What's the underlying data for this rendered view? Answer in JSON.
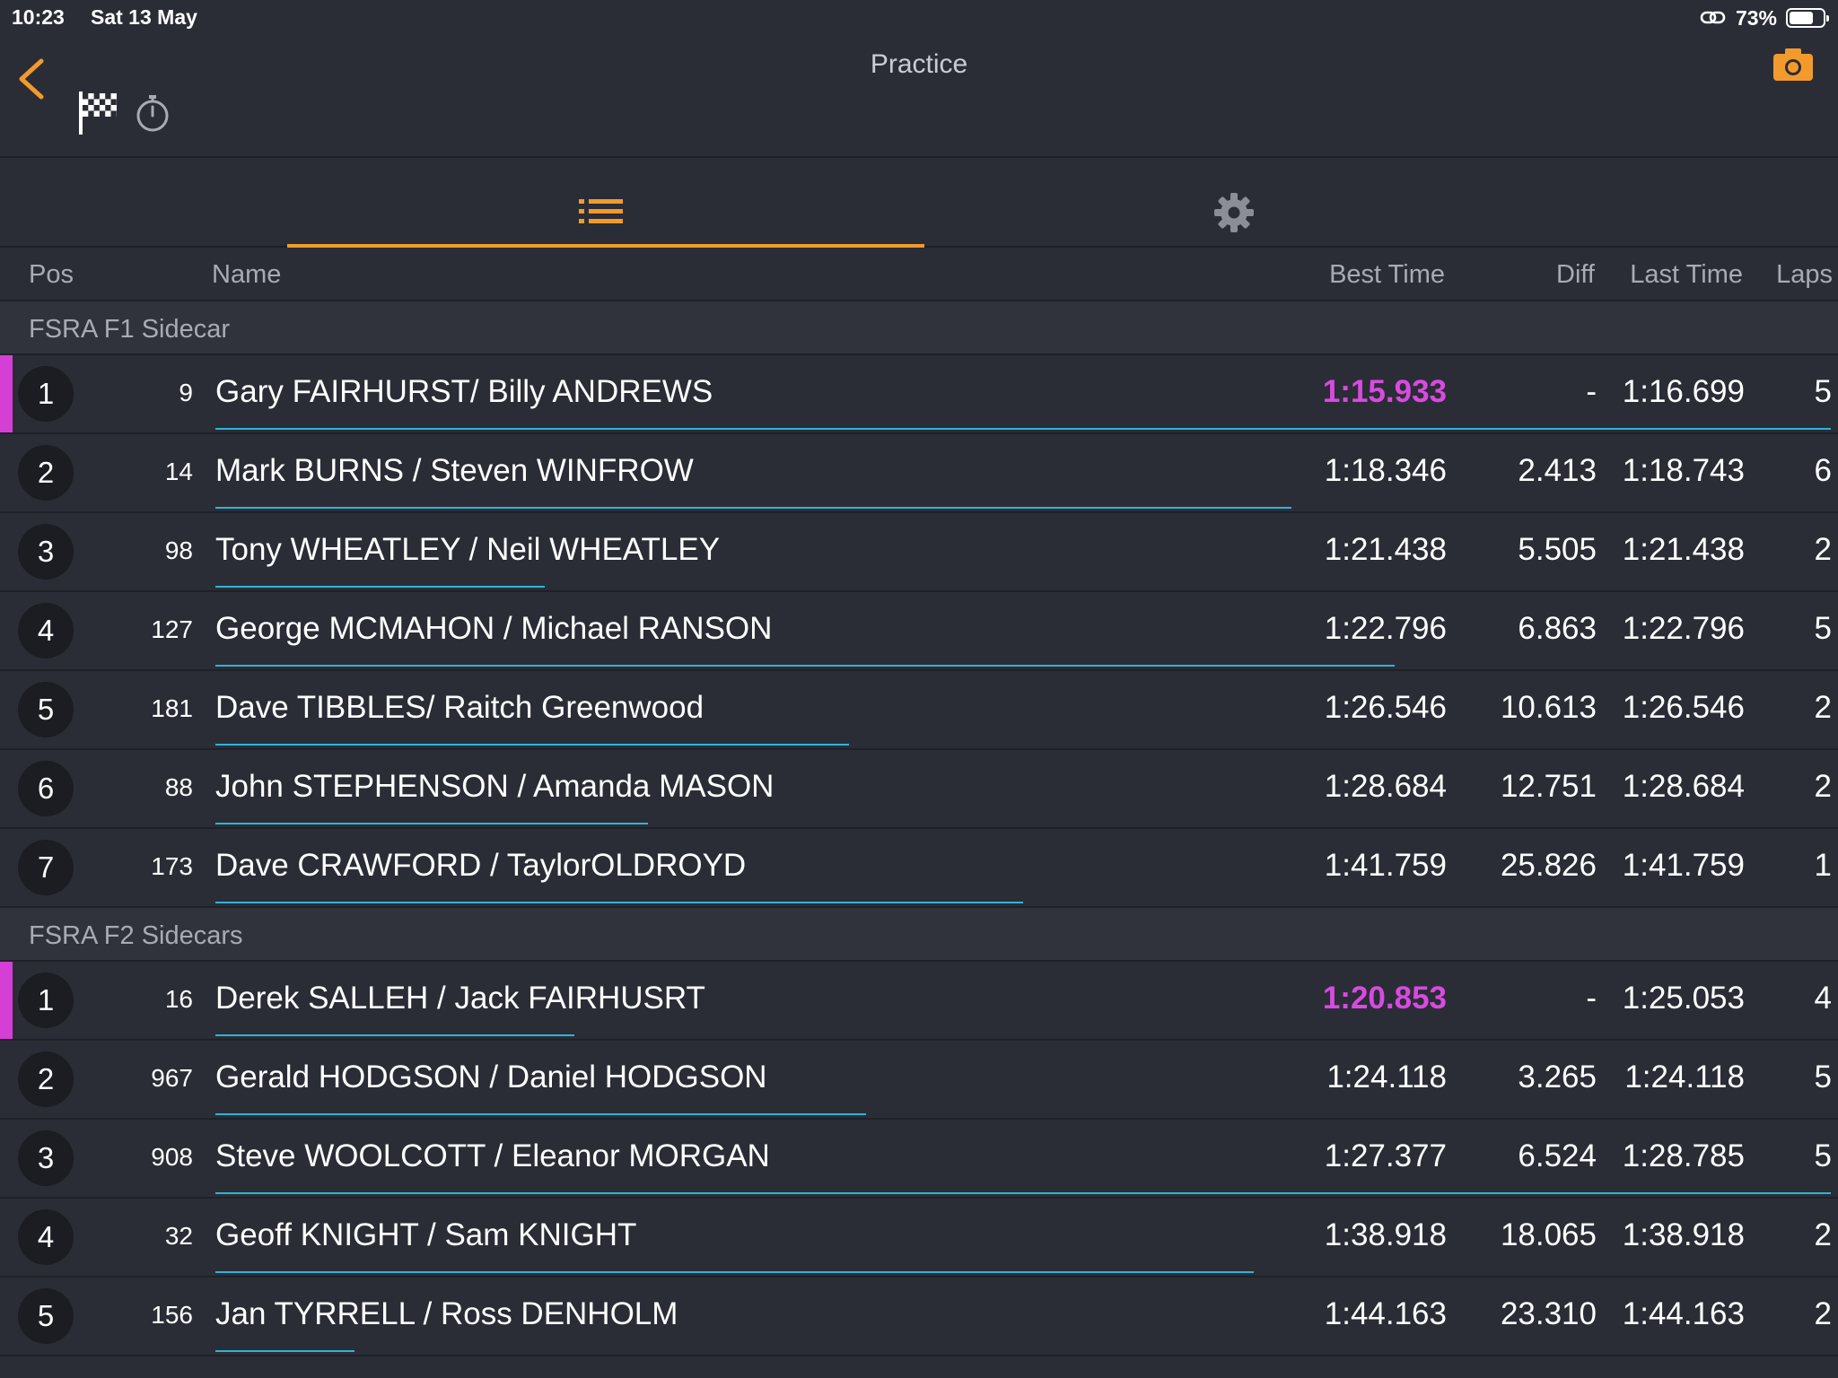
{
  "status_bar": {
    "time": "10:23",
    "date": "Sat 13 May",
    "battery": "73%",
    "battery_level": 0.73
  },
  "header": {
    "title": "Practice"
  },
  "colors": {
    "accent": "#f39a2c",
    "leader": "#d63fd6",
    "fastest": "#d84ae0",
    "progress": "#2fb4d6"
  },
  "columns": {
    "pos": "Pos",
    "name": "Name",
    "best": "Best Time",
    "diff": "Diff",
    "last": "Last Time",
    "laps": "Laps"
  },
  "groups": [
    {
      "name": "FSRA F1 Sidecar",
      "rows": [
        {
          "pos": "1",
          "num": "9",
          "name": "Gary FAIRHURST/ Billy ANDREWS",
          "best": "1:15.933",
          "diff": "-",
          "last": "1:16.699",
          "laps": "5",
          "leader": true,
          "progress": 1.0
        },
        {
          "pos": "2",
          "num": "14",
          "name": "Mark BURNS / Steven WINFROW",
          "best": "1:18.346",
          "diff": "2.413",
          "last": "1:18.743",
          "laps": "6",
          "leader": false,
          "progress": 0.666
        },
        {
          "pos": "3",
          "num": "98",
          "name": "Tony WHEATLEY / Neil WHEATLEY",
          "best": "1:21.438",
          "diff": "5.505",
          "last": "1:21.438",
          "laps": "2",
          "leader": false,
          "progress": 0.204
        },
        {
          "pos": "4",
          "num": "127",
          "name": "George MCMAHON / Michael RANSON",
          "best": "1:22.796",
          "diff": "6.863",
          "last": "1:22.796",
          "laps": "5",
          "leader": false,
          "progress": 0.73
        },
        {
          "pos": "5",
          "num": "181",
          "name": "Dave TIBBLES/ Raitch Greenwood",
          "best": "1:26.546",
          "diff": "10.613",
          "last": "1:26.546",
          "laps": "2",
          "leader": false,
          "progress": 0.392
        },
        {
          "pos": "6",
          "num": "88",
          "name": "John STEPHENSON / Amanda MASON",
          "best": "1:28.684",
          "diff": "12.751",
          "last": "1:28.684",
          "laps": "2",
          "leader": false,
          "progress": 0.268
        },
        {
          "pos": "7",
          "num": "173",
          "name": "Dave CRAWFORD / TaylorOLDROYD",
          "best": "1:41.759",
          "diff": "25.826",
          "last": "1:41.759",
          "laps": "1",
          "leader": false,
          "progress": 0.5
        }
      ]
    },
    {
      "name": "FSRA F2 Sidecars",
      "rows": [
        {
          "pos": "1",
          "num": "16",
          "name": "Derek SALLEH /  Jack FAIRHUSRT",
          "best": "1:20.853",
          "diff": "-",
          "last": "1:25.053",
          "laps": "4",
          "leader": true,
          "progress": 0.222
        },
        {
          "pos": "2",
          "num": "967",
          "name": "Gerald HODGSON / Daniel HODGSON",
          "best": "1:24.118",
          "diff": "3.265",
          "last": "1:24.118",
          "laps": "5",
          "leader": false,
          "progress": 0.403
        },
        {
          "pos": "3",
          "num": "908",
          "name": "Steve WOOLCOTT /  Eleanor MORGAN",
          "best": "1:27.377",
          "diff": "6.524",
          "last": "1:28.785",
          "laps": "5",
          "leader": false,
          "progress": 1.0
        },
        {
          "pos": "4",
          "num": "32",
          "name": "Geoff KNIGHT / Sam KNIGHT",
          "best": "1:38.918",
          "diff": "18.065",
          "last": "1:38.918",
          "laps": "2",
          "leader": false,
          "progress": 0.643
        },
        {
          "pos": "5",
          "num": "156",
          "name": "Jan TYRRELL / Ross DENHOLM",
          "best": "1:44.163",
          "diff": "23.310",
          "last": "1:44.163",
          "laps": "2",
          "leader": false,
          "progress": 0.086
        }
      ]
    }
  ]
}
